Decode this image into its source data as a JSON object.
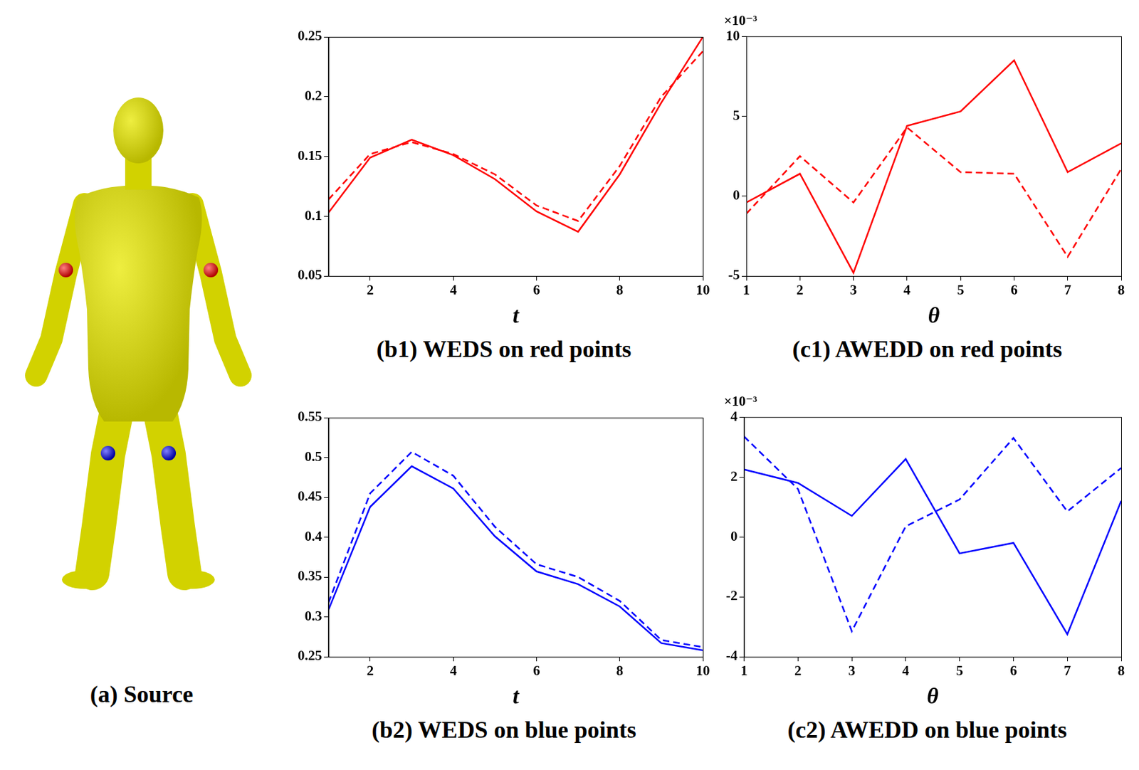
{
  "source_panel": {
    "caption": "(a) Source"
  },
  "chart_data": [
    {
      "type": "line",
      "caption": "(b1) WEDS on red points",
      "x_label": "t",
      "x": [
        1,
        2,
        3,
        4,
        5,
        6,
        7,
        8,
        9,
        10
      ],
      "xlim": [
        1,
        10
      ],
      "xticks": [
        2,
        4,
        6,
        8,
        10
      ],
      "ylim": [
        0.05,
        0.25
      ],
      "yticks": [
        0.05,
        0.1,
        0.15,
        0.2,
        0.25
      ],
      "grid": false,
      "series": [
        {
          "color": "#ff0000",
          "line_style": "solid",
          "values": [
            0.103,
            0.149,
            0.164,
            0.151,
            0.131,
            0.104,
            0.087,
            0.135,
            0.195,
            0.25
          ]
        },
        {
          "color": "#ff0000",
          "line_style": "dashed",
          "values": [
            0.114,
            0.152,
            0.162,
            0.152,
            0.135,
            0.109,
            0.096,
            0.142,
            0.2,
            0.238
          ]
        }
      ]
    },
    {
      "type": "line",
      "caption": "(c1) AWEDD on red points",
      "x_label": "θ",
      "y_scale_label": "×10⁻³",
      "x": [
        1,
        2,
        3,
        4,
        5,
        6,
        7,
        8
      ],
      "xlim": [
        1,
        8
      ],
      "xticks": [
        1,
        2,
        3,
        4,
        5,
        6,
        7,
        8
      ],
      "ylim": [
        -5,
        10
      ],
      "yticks": [
        -5,
        0,
        5,
        10
      ],
      "grid": false,
      "series": [
        {
          "color": "#ff0000",
          "line_style": "solid",
          "values": [
            -0.4,
            1.4,
            -4.8,
            4.4,
            5.3,
            8.5,
            1.5,
            3.3
          ]
        },
        {
          "color": "#ff0000",
          "line_style": "dashed",
          "values": [
            -1.1,
            2.5,
            -0.4,
            4.3,
            1.5,
            1.4,
            -3.8,
            1.7
          ]
        }
      ]
    },
    {
      "type": "line",
      "caption": "(b2) WEDS on blue points",
      "x_label": "t",
      "x": [
        1,
        2,
        3,
        4,
        5,
        6,
        7,
        8,
        9,
        10
      ],
      "xlim": [
        1,
        10
      ],
      "xticks": [
        2,
        4,
        6,
        8,
        10
      ],
      "ylim": [
        0.25,
        0.55
      ],
      "yticks": [
        0.25,
        0.3,
        0.35,
        0.4,
        0.45,
        0.5,
        0.55
      ],
      "grid": false,
      "series": [
        {
          "color": "#0000ff",
          "line_style": "solid",
          "values": [
            0.309,
            0.438,
            0.489,
            0.461,
            0.401,
            0.357,
            0.341,
            0.313,
            0.267,
            0.258
          ]
        },
        {
          "color": "#0000ff",
          "line_style": "dashed",
          "values": [
            0.318,
            0.455,
            0.507,
            0.477,
            0.413,
            0.366,
            0.35,
            0.32,
            0.271,
            0.262
          ]
        }
      ]
    },
    {
      "type": "line",
      "caption": "(c2) AWEDD on blue points",
      "x_label": "θ",
      "y_scale_label": "×10⁻³",
      "x": [
        1,
        2,
        3,
        4,
        5,
        6,
        7,
        8
      ],
      "xlim": [
        1,
        8
      ],
      "xticks": [
        1,
        2,
        3,
        4,
        5,
        6,
        7,
        8
      ],
      "ylim": [
        -4,
        4
      ],
      "yticks": [
        -4,
        -2,
        0,
        2,
        4
      ],
      "grid": false,
      "series": [
        {
          "color": "#0000ff",
          "line_style": "solid",
          "values": [
            2.25,
            1.8,
            0.7,
            2.6,
            -0.55,
            -0.2,
            -3.25,
            1.2
          ]
        },
        {
          "color": "#0000ff",
          "line_style": "dashed",
          "values": [
            3.35,
            1.6,
            -3.15,
            0.35,
            1.25,
            3.3,
            0.85,
            2.3
          ]
        }
      ]
    }
  ]
}
